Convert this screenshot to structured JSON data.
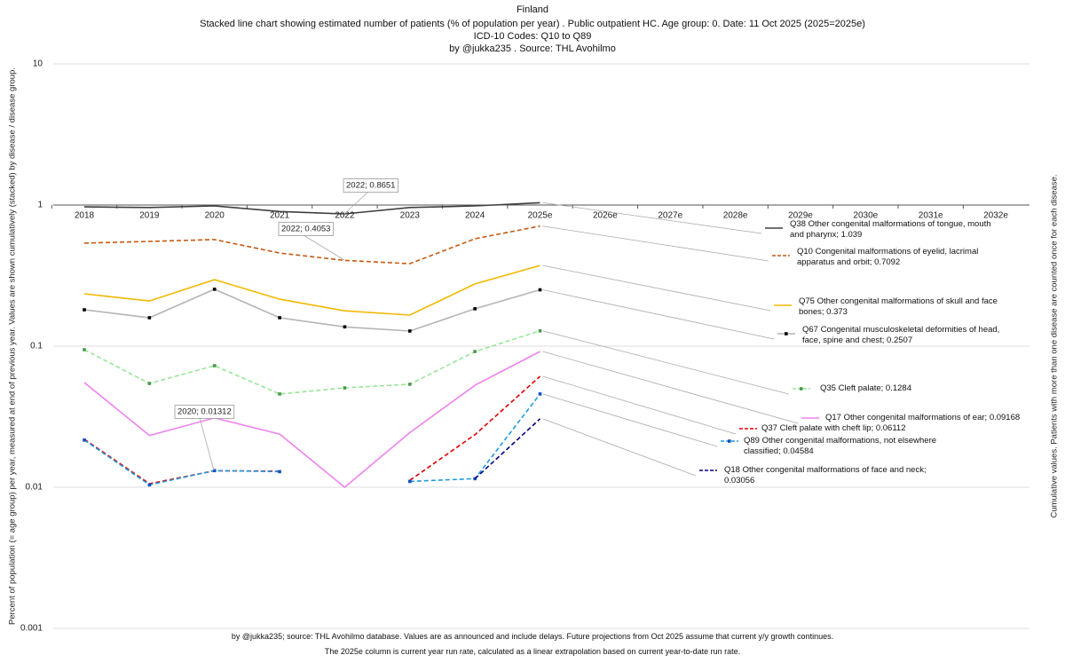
{
  "chart_data": {
    "type": "line",
    "title": "Finland",
    "subtitle": [
      "Stacked line chart showing estimated number of patients  (% of population per year) . Public outpatient HC. Age group: 0. Date: 11 Oct 2025 (2025=2025e)",
      "ICD-10 Codes: Q10 to Q89",
      "by @jukka235 . Source: THL Avohilmo"
    ],
    "y_label": "Percent of population (= age group) per year, measured at end of previous year. Values are shown cumulatively (stacked) by disease / disease group.",
    "y2_label": "Cumulative values. Patients with more than one disease are counted once for each disease.",
    "footer": [
      "by @jukka235; source: THL Avohilmo database. Values are as announced and include delays. Future projections from Oct 2025 assume that current y/y growth continues.",
      "The 2025e column is current year run rate, calculated as a linear extrapolation based on current year-to-date run rate."
    ],
    "annotations": [
      "2022; 0.8651",
      "2022; 0.4053",
      "2020; 0.01312"
    ],
    "log_scale": true,
    "grid": true,
    "ylim": [
      0.001,
      10
    ],
    "yticks": [
      0.001,
      0.01,
      0.1,
      1,
      10
    ],
    "categories": [
      "2018",
      "2019",
      "2020",
      "2021",
      "2022",
      "2023",
      "2024",
      "2025e",
      "2026e",
      "2027e",
      "2028e",
      "2029e",
      "2030e",
      "2031e",
      "2032e"
    ],
    "series": [
      {
        "name": "Q38 Other congenital malformations of tongue, mouth and pharynx; 1.039",
        "color": "#404040",
        "dashed": false,
        "values": [
          0.97,
          0.96,
          0.985,
          0.9,
          0.8651,
          0.96,
          0.985,
          1.039,
          null,
          null,
          null,
          null,
          null,
          null,
          null
        ]
      },
      {
        "name": "Q10 Congenital malformations of eyelid, lacrimal apparatus and orbit; 0.7092",
        "color": "#c55a11",
        "dashed": true,
        "values": [
          0.537,
          0.552,
          0.569,
          0.457,
          0.4053,
          0.384,
          0.577,
          0.7092,
          null,
          null,
          null,
          null,
          null,
          null,
          null
        ]
      },
      {
        "name": "Q75 Other congenital malformations of skull and face bones; 0.373",
        "color": "#f2b800",
        "dashed": false,
        "values": [
          0.235,
          0.209,
          0.296,
          0.215,
          0.178,
          0.166,
          0.276,
          0.373,
          null,
          null,
          null,
          null,
          null,
          null,
          null
        ]
      },
      {
        "name": "Q67 Congenital musculoskeletal deformities of head, face, spine and chest; 0.2507",
        "color": "#b4b4b4",
        "dashed": false,
        "marker_color": "#000000",
        "values": [
          0.181,
          0.159,
          0.253,
          0.159,
          0.137,
          0.128,
          0.184,
          0.2507,
          null,
          null,
          null,
          null,
          null,
          null,
          null
        ]
      },
      {
        "name": "Q35 Cleft palate; 0.1284",
        "color": "#98e698",
        "dashed": true,
        "marker_color": "#4a9a4a",
        "values": [
          0.0944,
          0.0544,
          0.0727,
          0.0458,
          0.0506,
          0.0537,
          0.0916,
          0.1284,
          null,
          null,
          null,
          null,
          null,
          null,
          null
        ]
      },
      {
        "name": "Q17 Other congenital malformations of ear; 0.09168",
        "color": "#ee82ee",
        "dashed": false,
        "values": [
          0.0552,
          0.0233,
          0.031,
          0.0238,
          0.01,
          0.0244,
          0.0528,
          0.09168,
          null,
          null,
          null,
          null,
          null,
          null,
          null
        ]
      },
      {
        "name": "Q37 Cleft palate with cheft lip; 0.06112",
        "color": "#dd0000",
        "dashed": true,
        "values": [
          0.0219,
          0.0106,
          0.0131,
          0.013,
          null,
          0.0112,
          0.0236,
          0.06112,
          null,
          null,
          null,
          null,
          null,
          null,
          null
        ]
      },
      {
        "name": "Q89 Other congenital malformations, not elsewhere classified; 0.04584",
        "color": "#1e9be0",
        "dashed": true,
        "marker_color": "#1050c0",
        "values": [
          0.0216,
          0.0104,
          0.01312,
          0.0129,
          null,
          0.011,
          0.0115,
          0.04584,
          null,
          null,
          null,
          null,
          null,
          null,
          null
        ]
      },
      {
        "name": "Q18 Other congenital malformations of face and neck; 0.03056",
        "color": "#000080",
        "dashed": true,
        "values": [
          null,
          null,
          null,
          null,
          null,
          null,
          0.0115,
          0.03056,
          null,
          null,
          null,
          null,
          null,
          null,
          null
        ]
      }
    ]
  }
}
